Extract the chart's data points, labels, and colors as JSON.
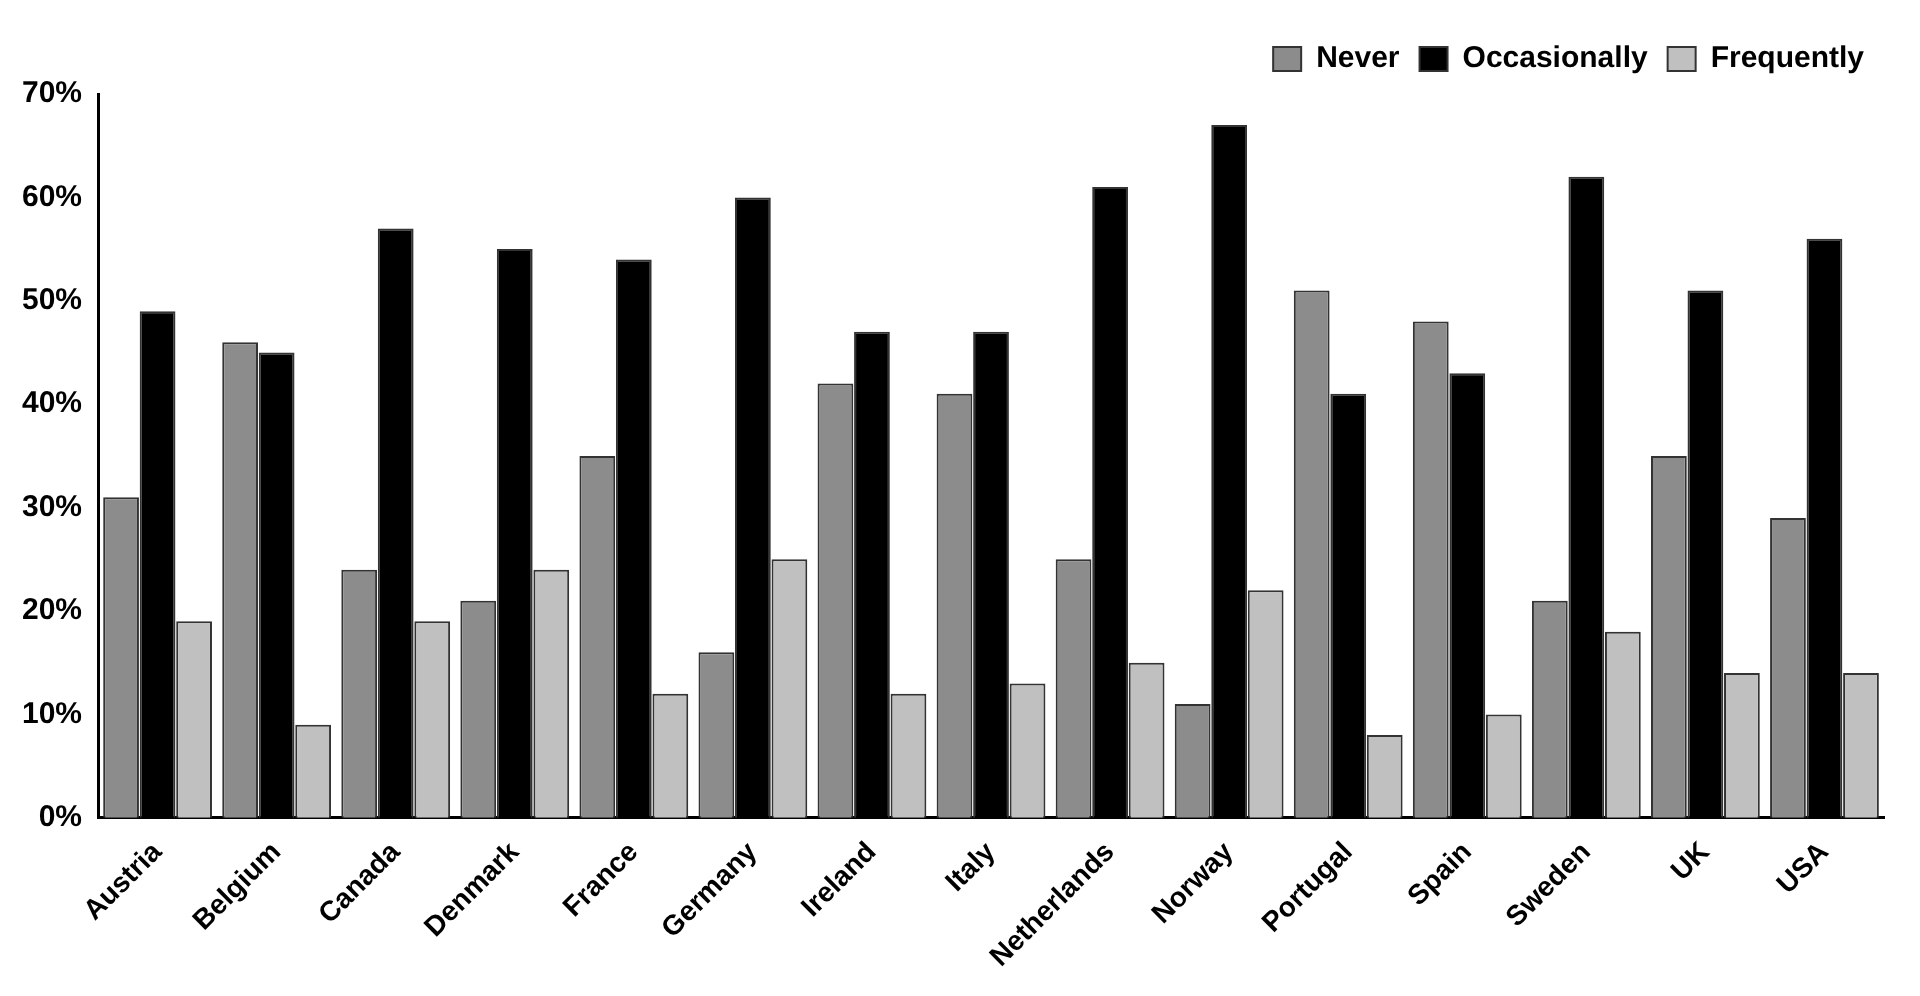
{
  "chart_data": {
    "type": "bar",
    "categories": [
      "Austria",
      "Belgium",
      "Canada",
      "Denmark",
      "France",
      "Germany",
      "Ireland",
      "Italy",
      "Netherlands",
      "Norway",
      "Portugal",
      "Spain",
      "Sweden",
      "UK",
      "USA"
    ],
    "series": [
      {
        "name": "Never",
        "color": "#8c8c8c",
        "values": [
          31,
          46,
          24,
          21,
          35,
          16,
          42,
          41,
          25,
          11,
          51,
          48,
          21,
          35,
          29
        ]
      },
      {
        "name": "Occasionally",
        "color": "#000000",
        "values": [
          49,
          45,
          57,
          55,
          54,
          60,
          47,
          47,
          61,
          67,
          41,
          43,
          62,
          51,
          56
        ]
      },
      {
        "name": "Frequently",
        "color": "#c0c0c0",
        "values": [
          19,
          9,
          19,
          24,
          12,
          25,
          12,
          13,
          15,
          22,
          8,
          10,
          18,
          14,
          14
        ]
      }
    ],
    "ylim": [
      0,
      70
    ],
    "yticks": [
      {
        "value": 0,
        "label": "0%"
      },
      {
        "value": 10,
        "label": "10%"
      },
      {
        "value": 20,
        "label": "20%"
      },
      {
        "value": 30,
        "label": "30%"
      },
      {
        "value": 40,
        "label": "40%"
      },
      {
        "value": 50,
        "label": "50%"
      },
      {
        "value": 60,
        "label": "60%"
      },
      {
        "value": 70,
        "label": "70%"
      }
    ],
    "grid": false,
    "legend": "top right"
  }
}
